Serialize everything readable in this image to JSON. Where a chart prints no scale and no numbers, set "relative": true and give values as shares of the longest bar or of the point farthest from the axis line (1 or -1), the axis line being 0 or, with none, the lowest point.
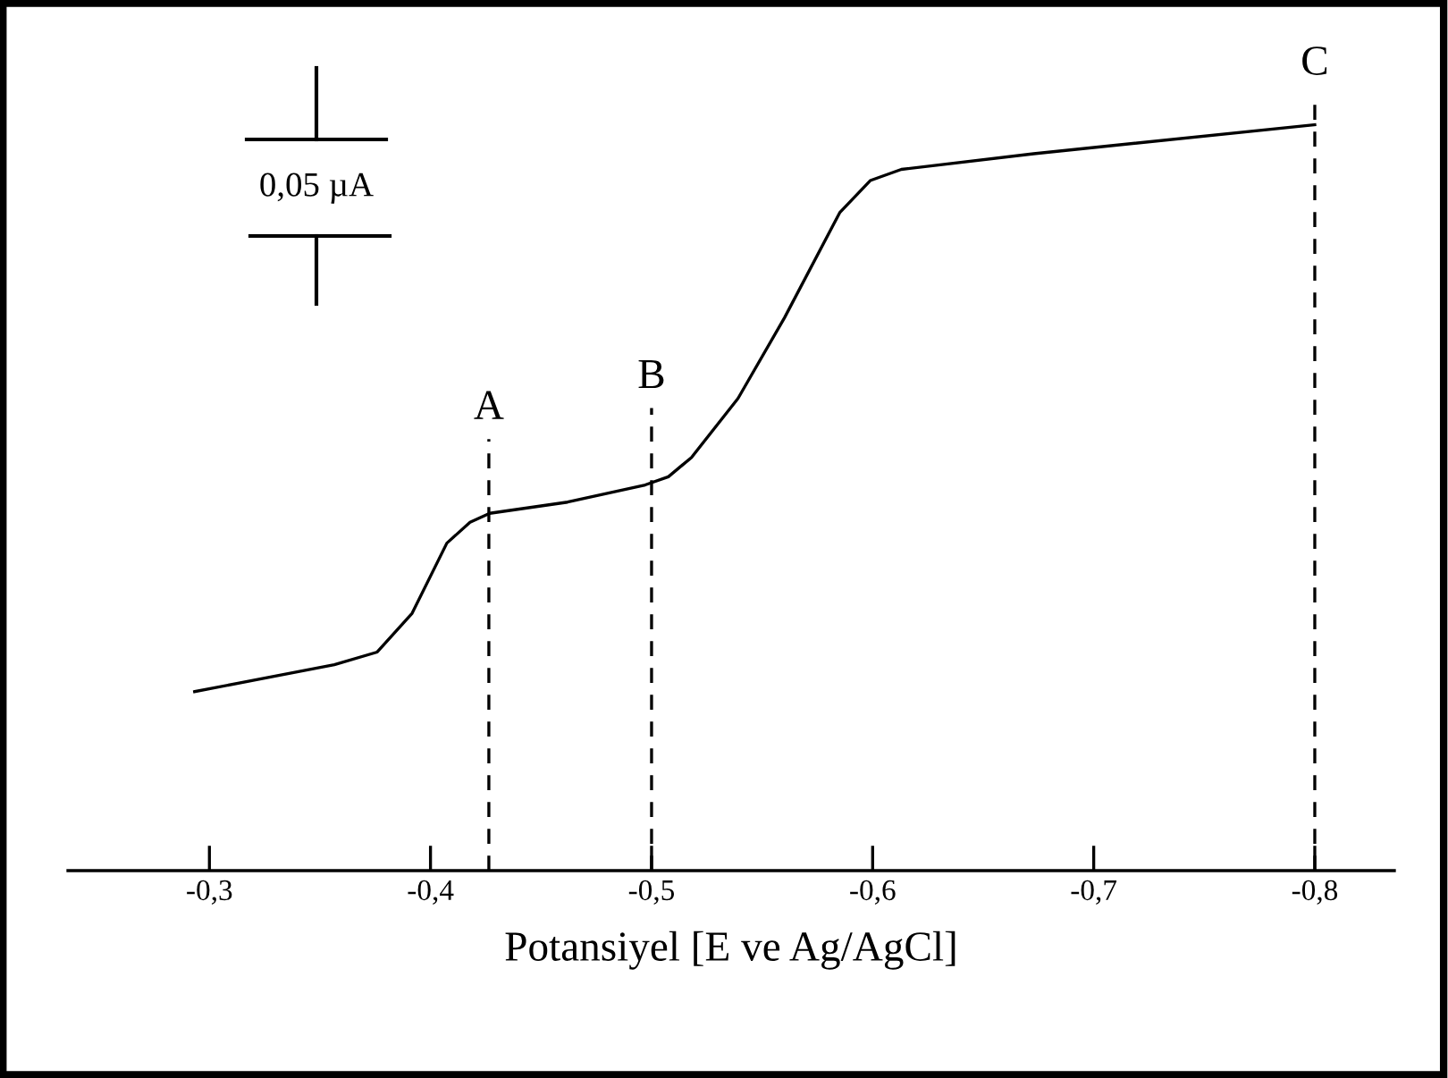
{
  "chart_data": {
    "type": "line",
    "relative": true,
    "xlabel": "Potansiyel [E ve Ag/AgCl]",
    "x": [
      -0.2933,
      -0.3565,
      -0.3759,
      -0.3917,
      -0.4074,
      -0.4179,
      -0.4268,
      -0.462,
      -0.4971,
      -0.5076,
      -0.5181,
      -0.5391,
      -0.5601,
      -0.5851,
      -0.5989,
      -0.613,
      -0.6728,
      -0.8
    ],
    "series": [
      {
        "color": "#000000",
        "values": [
          0.24,
          0.276,
          0.293,
          0.345,
          0.439,
          0.467,
          0.479,
          0.494,
          0.517,
          0.528,
          0.554,
          0.633,
          0.741,
          0.882,
          0.925,
          0.94,
          0.961,
          1.0
        ]
      }
    ],
    "xlim": [
      -0.236,
      -0.836
    ],
    "xticks": [
      {
        "value": -0.3,
        "label": "-0,3"
      },
      {
        "value": -0.4,
        "label": "-0,4"
      },
      {
        "value": -0.5,
        "label": "-0,5"
      },
      {
        "value": -0.6,
        "label": "-0,6"
      },
      {
        "value": -0.7,
        "label": "-0,7"
      },
      {
        "value": -0.8,
        "label": "-0,8"
      }
    ],
    "ref_lines": [
      {
        "axis": "x",
        "value": -0.4264,
        "label": "A",
        "color": "#000000",
        "line_style": "dashed"
      },
      {
        "axis": "x",
        "value": -0.5,
        "label": "B",
        "color": "#000000",
        "line_style": "dashed"
      },
      {
        "axis": "x",
        "value": -0.8,
        "label": "C",
        "color": "#000000",
        "line_style": "dashed"
      }
    ],
    "annotations": [
      "0,05 µA"
    ],
    "grid": false
  }
}
